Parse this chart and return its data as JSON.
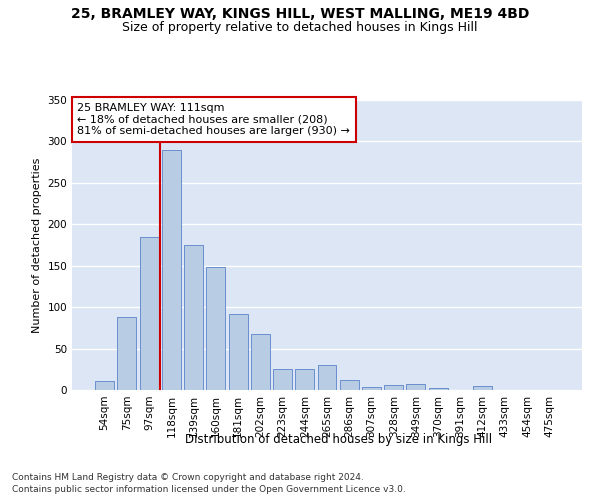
{
  "title1": "25, BRAMLEY WAY, KINGS HILL, WEST MALLING, ME19 4BD",
  "title2": "Size of property relative to detached houses in Kings Hill",
  "xlabel": "Distribution of detached houses by size in Kings Hill",
  "ylabel": "Number of detached properties",
  "categories": [
    "54sqm",
    "75sqm",
    "97sqm",
    "118sqm",
    "139sqm",
    "160sqm",
    "181sqm",
    "202sqm",
    "223sqm",
    "244sqm",
    "265sqm",
    "286sqm",
    "307sqm",
    "328sqm",
    "349sqm",
    "370sqm",
    "391sqm",
    "412sqm",
    "433sqm",
    "454sqm",
    "475sqm"
  ],
  "values": [
    11,
    88,
    185,
    290,
    175,
    148,
    92,
    68,
    25,
    25,
    30,
    12,
    4,
    6,
    7,
    3,
    0,
    5,
    0,
    0,
    0
  ],
  "bar_color": "#b8cce4",
  "bar_edge_color": "#4472c4",
  "vline_x": 2.5,
  "vline_color": "#cc0000",
  "annotation_text": "25 BRAMLEY WAY: 111sqm\n← 18% of detached houses are smaller (208)\n81% of semi-detached houses are larger (930) →",
  "annotation_box_color": "#ffffff",
  "annotation_box_edge": "#cc0000",
  "ylim": [
    0,
    350
  ],
  "yticks": [
    0,
    50,
    100,
    150,
    200,
    250,
    300,
    350
  ],
  "footer1": "Contains HM Land Registry data © Crown copyright and database right 2024.",
  "footer2": "Contains public sector information licensed under the Open Government Licence v3.0.",
  "bg_color": "#dce6f5",
  "grid_color": "#ffffff",
  "fig_bg_color": "#ffffff",
  "title1_fontsize": 10,
  "title2_fontsize": 9,
  "xlabel_fontsize": 8.5,
  "ylabel_fontsize": 8,
  "tick_fontsize": 7.5,
  "annotation_fontsize": 8,
  "footer_fontsize": 6.5
}
